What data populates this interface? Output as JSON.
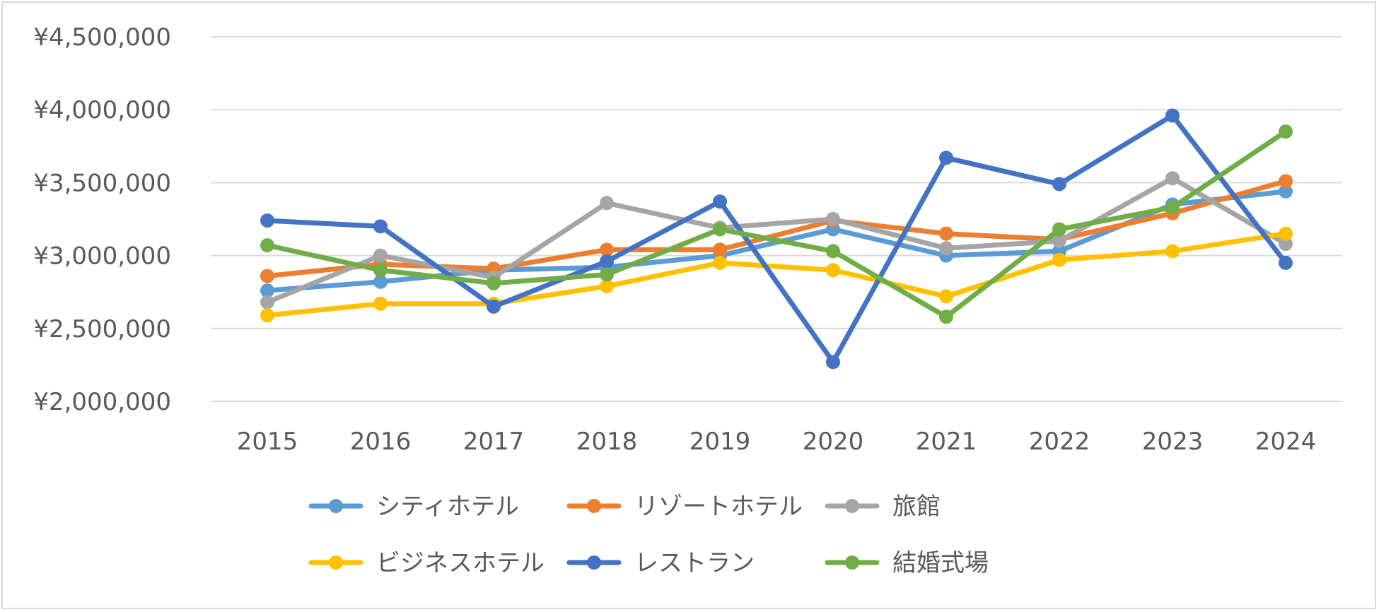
{
  "chart_data": {
    "type": "line",
    "title": "",
    "xlabel": "",
    "ylabel": "",
    "ylim": [
      2000000,
      4500000
    ],
    "y_ticks": [
      {
        "value": 2000000,
        "label": "¥2,000,000"
      },
      {
        "value": 2500000,
        "label": "¥2,500,000"
      },
      {
        "value": 3000000,
        "label": "¥3,000,000"
      },
      {
        "value": 3500000,
        "label": "¥3,500,000"
      },
      {
        "value": 4000000,
        "label": "¥4,000,000"
      },
      {
        "value": 4500000,
        "label": "¥4,500,000"
      }
    ],
    "grid": true,
    "legend_position": "bottom",
    "categories": [
      "2015",
      "2016",
      "2017",
      "2018",
      "2019",
      "2020",
      "2021",
      "2022",
      "2023",
      "2024"
    ],
    "series": [
      {
        "name": "シティホテル",
        "color": "#5b9bd5",
        "values": [
          2760000,
          2820000,
          2900000,
          2920000,
          3000000,
          3180000,
          3000000,
          3030000,
          3350000,
          3440000
        ]
      },
      {
        "name": "リゾートホテル",
        "color": "#ed7d31",
        "values": [
          2860000,
          2940000,
          2910000,
          3040000,
          3040000,
          3240000,
          3150000,
          3110000,
          3290000,
          3510000
        ]
      },
      {
        "name": "旅館",
        "color": "#a5a5a5",
        "values": [
          2680000,
          3000000,
          2850000,
          3360000,
          3190000,
          3250000,
          3050000,
          3100000,
          3530000,
          3080000
        ]
      },
      {
        "name": "ビジネスホテル",
        "color": "#ffc000",
        "values": [
          2590000,
          2670000,
          2670000,
          2790000,
          2950000,
          2900000,
          2720000,
          2970000,
          3030000,
          3150000
        ]
      },
      {
        "name": "レストラン",
        "color": "#4472c4",
        "values": [
          3240000,
          3200000,
          2650000,
          2960000,
          3370000,
          2270000,
          3670000,
          3490000,
          3960000,
          2950000
        ]
      },
      {
        "name": "結婚式場",
        "color": "#70ad47",
        "values": [
          3070000,
          2900000,
          2810000,
          2870000,
          3180000,
          3030000,
          2580000,
          3180000,
          3330000,
          3850000
        ]
      }
    ]
  }
}
